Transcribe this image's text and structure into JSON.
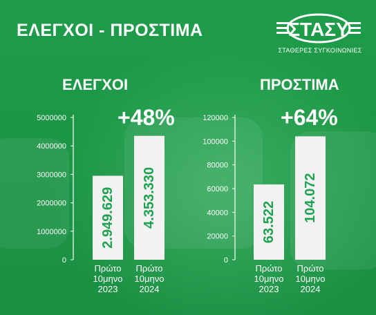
{
  "header": {
    "title": "ΕΛΕΓΧΟΙ - ΠΡΟΣΤΙΜΑ",
    "logo_text": "ΣΤΑΣΥ",
    "logo_subtitle": "ΣΤΑΘΕΡΕΣ ΣΥΓΚΟΙΝΩΝΙΕΣ"
  },
  "colors": {
    "background": "#1d9a48",
    "bar": "#f2f2f2",
    "bar_label": "#1fa24f",
    "text": "#ffffff"
  },
  "chart_data": [
    {
      "type": "bar",
      "title": "ΕΛΕΓΧΟΙ",
      "growth_label": "+48%",
      "categories": [
        [
          "Πρώτο",
          "10μηνο",
          "2023"
        ],
        [
          "Πρώτο",
          "10μηνο",
          "2024"
        ]
      ],
      "values": [
        2949629,
        4353330
      ],
      "data_labels": [
        "2.949.629",
        "4.353.330"
      ],
      "ylim": [
        0,
        5000000
      ],
      "yticks": [
        0,
        1000000,
        2000000,
        3000000,
        4000000,
        5000000
      ],
      "ytick_labels": [
        "0",
        "1000000",
        "2000000",
        "3000000",
        "4000000",
        "5000000"
      ],
      "grid": false,
      "legend": "none"
    },
    {
      "type": "bar",
      "title": "ΠΡΟΣΤΙΜΑ",
      "growth_label": "+64%",
      "categories": [
        [
          "Πρώτο",
          "10μηνο",
          "2023"
        ],
        [
          "Πρώτο",
          "10μηνο",
          "2024"
        ]
      ],
      "values": [
        63522,
        104072
      ],
      "data_labels": [
        "63.522",
        "104.072"
      ],
      "ylim": [
        0,
        120000
      ],
      "yticks": [
        0,
        20000,
        40000,
        60000,
        80000,
        100000,
        120000
      ],
      "ytick_labels": [
        "0",
        "20000",
        "40000",
        "60000",
        "80000",
        "100000",
        "120000"
      ],
      "grid": false,
      "legend": "none"
    }
  ]
}
